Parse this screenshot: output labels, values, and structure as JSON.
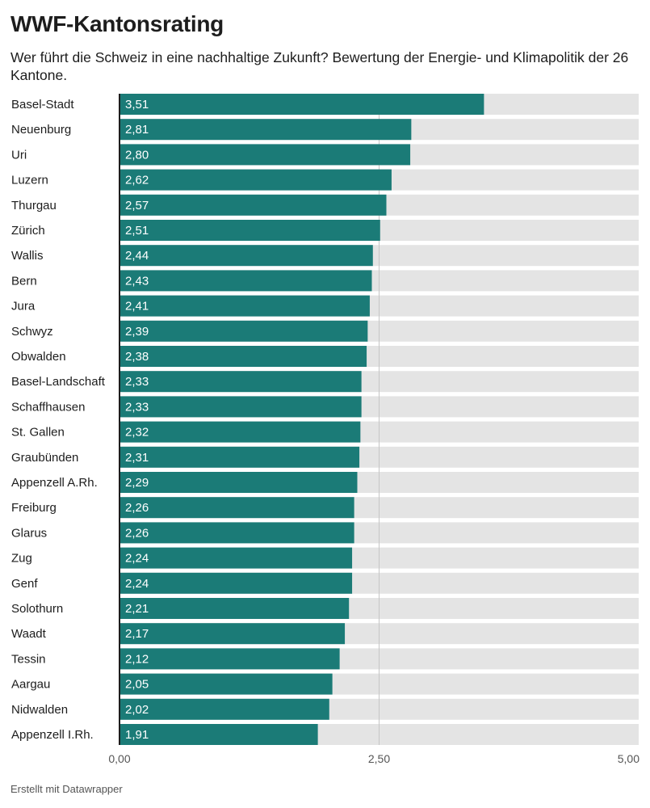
{
  "title": "WWF-Kantonsrating",
  "subtitle": "Wer führt die Schweiz in eine nachhaltige Zukunft? Bewertung der Energie- und Klimapolitik der 26 Kantone.",
  "credit": "Erstellt mit Datawrapper",
  "colors": {
    "bar": "#1b7b77",
    "track": "#e4e4e4",
    "gridline": "#c6c6c6"
  },
  "chart_data": {
    "type": "bar",
    "orientation": "horizontal",
    "xlim": [
      0,
      5
    ],
    "x_ticks": [
      0,
      2.5,
      5
    ],
    "x_tick_labels": [
      "0,00",
      "2,50",
      "5,00"
    ],
    "categories": [
      "Basel-Stadt",
      "Neuenburg",
      "Uri",
      "Luzern",
      "Thurgau",
      "Zürich",
      "Wallis",
      "Bern",
      "Jura",
      "Schwyz",
      "Obwalden",
      "Basel-Landschaft",
      "Schaffhausen",
      "St. Gallen",
      "Graubünden",
      "Appenzell A.Rh.",
      "Freiburg",
      "Glarus",
      "Zug",
      "Genf",
      "Solothurn",
      "Waadt",
      "Tessin",
      "Aargau",
      "Nidwalden",
      "Appenzell I.Rh."
    ],
    "values": [
      3.51,
      2.81,
      2.8,
      2.62,
      2.57,
      2.51,
      2.44,
      2.43,
      2.41,
      2.39,
      2.38,
      2.33,
      2.33,
      2.32,
      2.31,
      2.29,
      2.26,
      2.26,
      2.24,
      2.24,
      2.21,
      2.17,
      2.12,
      2.05,
      2.02,
      1.91
    ],
    "value_labels": [
      "3,51",
      "2,81",
      "2,80",
      "2,62",
      "2,57",
      "2,51",
      "2,44",
      "2,43",
      "2,41",
      "2,39",
      "2,38",
      "2,33",
      "2,33",
      "2,32",
      "2,31",
      "2,29",
      "2,26",
      "2,26",
      "2,24",
      "2,24",
      "2,21",
      "2,17",
      "2,12",
      "2,05",
      "2,02",
      "1,91"
    ]
  }
}
